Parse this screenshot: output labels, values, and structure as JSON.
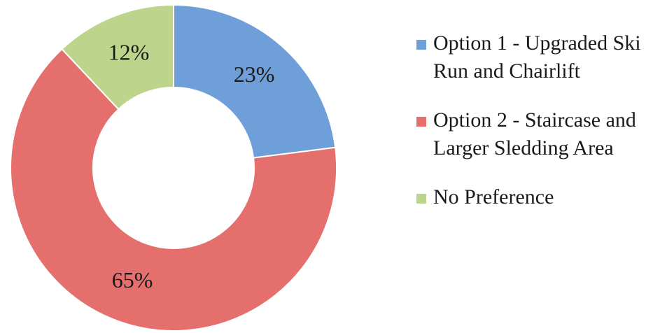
{
  "chart_data": {
    "type": "donut",
    "categories": [
      "Option 1 - Upgraded Ski Run and Chairlift",
      "Option 2 - Staircase and Larger Sledding Area",
      "No Preference"
    ],
    "values": [
      23,
      65,
      12
    ],
    "value_labels": [
      "23%",
      "65%",
      "12%"
    ],
    "colors": [
      "#6f9fd8",
      "#e46f6d",
      "#bcd48c"
    ],
    "legend": "right"
  }
}
